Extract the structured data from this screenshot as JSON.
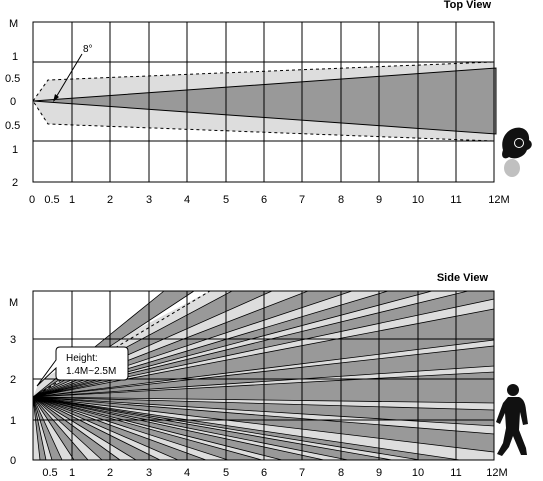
{
  "top_view": {
    "title": "Top View",
    "y_unit": "M",
    "y_labels": [
      "1",
      "0.5",
      "0",
      "0.5",
      "1",
      "2"
    ],
    "x_labels": [
      "0",
      "0.5",
      "1",
      "2",
      "3",
      "4",
      "5",
      "6",
      "7",
      "8",
      "9",
      "10",
      "11",
      "12M"
    ],
    "angle_label": "8°"
  },
  "side_view": {
    "title": "Side View",
    "y_unit": "M",
    "y_labels": [
      "3",
      "2",
      "1",
      "0"
    ],
    "x_labels": [
      "0.5",
      "1",
      "2",
      "3",
      "4",
      "5",
      "6",
      "7",
      "8",
      "9",
      "10",
      "11",
      "12M"
    ],
    "height_note_line1": "Height:",
    "height_note_line2": "1.4M~2.5M"
  },
  "colors": {
    "grid": "#000000",
    "inner_beam": "#999999",
    "outer_zone": "#dddddd",
    "figure": "#111111",
    "figure_shadow": "#c0c0c0"
  }
}
